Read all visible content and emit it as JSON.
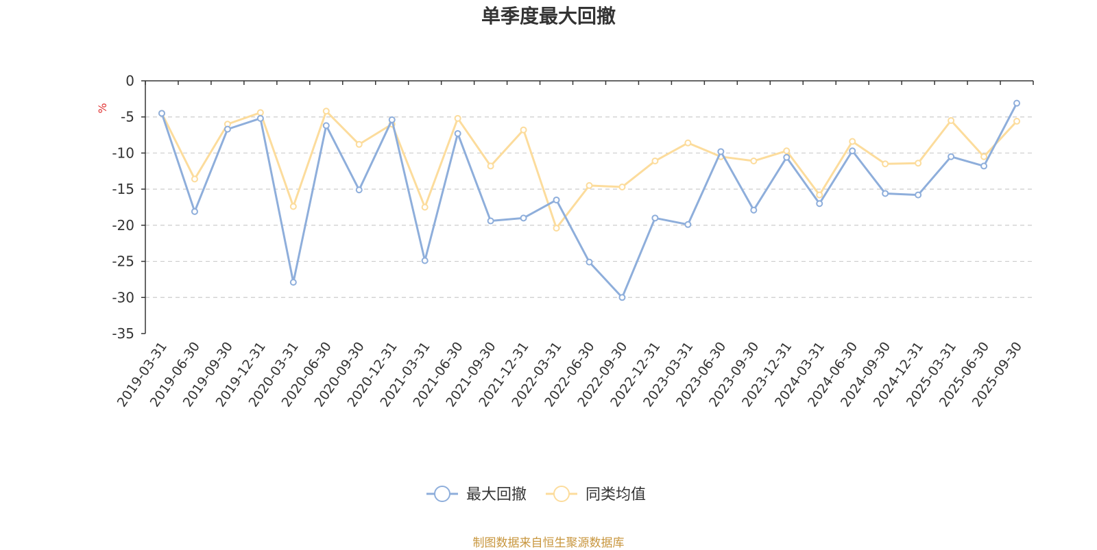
{
  "chart_data": {
    "type": "line",
    "title": "单季度最大回撤",
    "ylabel": "%",
    "xlabel": "",
    "ylim": [
      -35,
      0
    ],
    "yticks": [
      0,
      -5,
      -10,
      -15,
      -20,
      -25,
      -30,
      -35
    ],
    "grid": true,
    "legend_position": "bottom-center",
    "categories": [
      "2019-03-31",
      "2019-06-30",
      "2019-09-30",
      "2019-12-31",
      "2020-03-31",
      "2020-06-30",
      "2020-09-30",
      "2020-12-31",
      "2021-03-31",
      "2021-06-30",
      "2021-09-30",
      "2021-12-31",
      "2022-03-31",
      "2022-06-30",
      "2022-09-30",
      "2022-12-31",
      "2023-03-31",
      "2023-06-30",
      "2023-09-30",
      "2023-12-31",
      "2024-03-31",
      "2024-06-30",
      "2024-09-30",
      "2024-12-31",
      "2025-03-31",
      "2025-06-30",
      "2025-09-30"
    ],
    "series": [
      {
        "name": "最大回撤",
        "color": "#8eaedb",
        "values": [
          -4.5,
          -18.1,
          -6.7,
          -5.2,
          -27.9,
          -6.2,
          -15.1,
          -5.4,
          -24.9,
          -7.3,
          -19.4,
          -19.0,
          -16.5,
          -25.1,
          -30.0,
          -19.0,
          -19.9,
          -9.8,
          -17.9,
          -10.6,
          -17.0,
          -9.7,
          -15.6,
          -15.8,
          -10.5,
          -11.8,
          -3.1
        ]
      },
      {
        "name": "同类均值",
        "color": "#fcdc9c",
        "values": [
          -4.5,
          -13.6,
          -6.0,
          -4.4,
          -17.4,
          -4.2,
          -8.8,
          -6.0,
          -17.5,
          -5.2,
          -11.8,
          -6.8,
          -20.4,
          -14.5,
          -14.7,
          -11.1,
          -8.6,
          -10.5,
          -11.1,
          -9.7,
          -15.8,
          -8.4,
          -11.5,
          -11.4,
          -5.5,
          -10.5,
          -5.6
        ]
      }
    ]
  },
  "footer": {
    "source_note": "制图数据来自恒生聚源数据库"
  }
}
